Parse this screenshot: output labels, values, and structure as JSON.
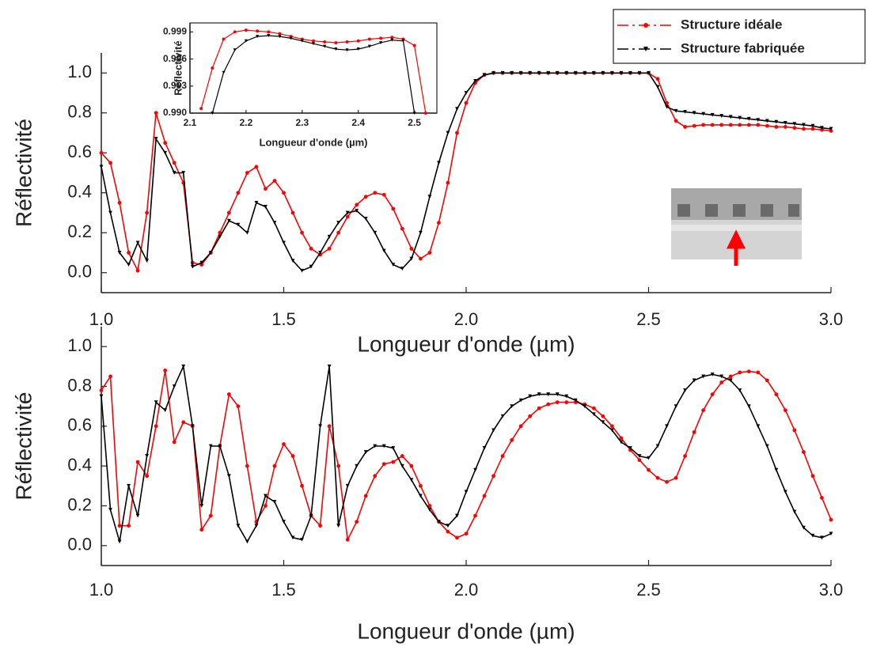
{
  "chart_data": [
    {
      "type": "line",
      "x": [
        1,
        1.025,
        1.05,
        1.075,
        1.1,
        1.125,
        1.15,
        1.175,
        1.2,
        1.225,
        1.25,
        1.275,
        1.3,
        1.325,
        1.35,
        1.375,
        1.4,
        1.425,
        1.45,
        1.475,
        1.5,
        1.525,
        1.55,
        1.575,
        1.6,
        1.625,
        1.65,
        1.675,
        1.7,
        1.725,
        1.75,
        1.775,
        1.8,
        1.825,
        1.85,
        1.875,
        1.9,
        1.925,
        1.95,
        1.975,
        2,
        2.025,
        2.05,
        2.075,
        2.1,
        2.125,
        2.15,
        2.175,
        2.2,
        2.225,
        2.25,
        2.275,
        2.3,
        2.325,
        2.35,
        2.375,
        2.4,
        2.425,
        2.45,
        2.475,
        2.5,
        2.525,
        2.55,
        2.575,
        2.6,
        2.625,
        2.65,
        2.675,
        2.7,
        2.725,
        2.75,
        2.775,
        2.8,
        2.825,
        2.85,
        2.875,
        2.9,
        2.925,
        2.95,
        2.975,
        3
      ],
      "series": [
        {
          "name": "Structure idéale",
          "color": "#ff0000",
          "marker": "circle",
          "values": [
            0.6,
            0.55,
            0.35,
            0.1,
            0.01,
            0.3,
            0.8,
            0.65,
            0.55,
            0.45,
            0.05,
            0.04,
            0.1,
            0.2,
            0.3,
            0.4,
            0.5,
            0.53,
            0.42,
            0.46,
            0.4,
            0.3,
            0.2,
            0.12,
            0.09,
            0.12,
            0.2,
            0.28,
            0.34,
            0.38,
            0.4,
            0.39,
            0.32,
            0.22,
            0.12,
            0.07,
            0.1,
            0.25,
            0.45,
            0.7,
            0.85,
            0.95,
            0.99,
            1,
            1,
            1,
            1,
            1,
            1,
            1,
            1,
            1,
            1,
            1,
            1,
            1,
            1,
            1,
            1,
            1,
            1,
            0.97,
            0.85,
            0.76,
            0.73,
            0.735,
            0.74,
            0.74,
            0.74,
            0.74,
            0.74,
            0.74,
            0.74,
            0.735,
            0.73,
            0.73,
            0.725,
            0.72,
            0.72,
            0.715,
            0.71
          ]
        },
        {
          "name": "Structure fabriquée",
          "color": "#000000",
          "marker": "triangle",
          "values": [
            0.53,
            0.3,
            0.1,
            0.04,
            0.15,
            0.06,
            0.67,
            0.6,
            0.5,
            0.5,
            0.03,
            0.05,
            0.1,
            0.18,
            0.26,
            0.24,
            0.2,
            0.35,
            0.33,
            0.25,
            0.15,
            0.06,
            0.01,
            0.03,
            0.1,
            0.18,
            0.25,
            0.3,
            0.31,
            0.27,
            0.2,
            0.11,
            0.04,
            0.02,
            0.07,
            0.2,
            0.38,
            0.55,
            0.7,
            0.82,
            0.9,
            0.96,
            0.99,
            1,
            1,
            1,
            1,
            1,
            1,
            1,
            1,
            1,
            1,
            1,
            1,
            1,
            1,
            1,
            1,
            1,
            1,
            0.93,
            0.83,
            0.81,
            0.805,
            0.8,
            0.795,
            0.79,
            0.785,
            0.78,
            0.775,
            0.77,
            0.765,
            0.76,
            0.755,
            0.75,
            0.745,
            0.74,
            0.735,
            0.725,
            0.72
          ]
        }
      ],
      "xlabel": "Longueur d'onde (µm)",
      "ylabel": "Réflectivité",
      "xlim": [
        1,
        3
      ],
      "ylim": [
        -0.1,
        1.1
      ],
      "xticks": [
        {
          "value": 1,
          "label": "1.0"
        },
        1.5,
        {
          "value": 2,
          "label": "2.0"
        },
        2.5,
        {
          "value": 3,
          "label": "3.0"
        }
      ],
      "yticks": [
        {
          "value": 0,
          "label": "0.0"
        },
        0.2,
        0.4,
        0.6,
        0.8,
        {
          "value": 1,
          "label": "1.0"
        }
      ],
      "legend": "upper right"
    },
    {
      "type": "line",
      "x": [
        1,
        1.025,
        1.05,
        1.075,
        1.1,
        1.125,
        1.15,
        1.175,
        1.2,
        1.225,
        1.25,
        1.275,
        1.3,
        1.325,
        1.35,
        1.375,
        1.4,
        1.425,
        1.45,
        1.475,
        1.5,
        1.525,
        1.55,
        1.575,
        1.6,
        1.625,
        1.65,
        1.675,
        1.7,
        1.725,
        1.75,
        1.775,
        1.8,
        1.825,
        1.85,
        1.875,
        1.9,
        1.925,
        1.95,
        1.975,
        2,
        2.025,
        2.05,
        2.075,
        2.1,
        2.125,
        2.15,
        2.175,
        2.2,
        2.225,
        2.25,
        2.275,
        2.3,
        2.325,
        2.35,
        2.375,
        2.4,
        2.425,
        2.45,
        2.475,
        2.5,
        2.525,
        2.55,
        2.575,
        2.6,
        2.625,
        2.65,
        2.675,
        2.7,
        2.725,
        2.75,
        2.775,
        2.8,
        2.825,
        2.85,
        2.875,
        2.9,
        2.925,
        2.95,
        2.975,
        3
      ],
      "series": [
        {
          "color": "#ff0000",
          "marker": "circle",
          "values": [
            0.78,
            0.85,
            0.1,
            0.1,
            0.42,
            0.35,
            0.6,
            0.88,
            0.52,
            0.62,
            0.6,
            0.08,
            0.15,
            0.5,
            0.76,
            0.7,
            0.4,
            0.12,
            0.2,
            0.4,
            0.51,
            0.45,
            0.3,
            0.15,
            0.1,
            0.6,
            0.4,
            0.03,
            0.12,
            0.25,
            0.35,
            0.41,
            0.42,
            0.45,
            0.4,
            0.3,
            0.2,
            0.12,
            0.07,
            0.04,
            0.06,
            0.15,
            0.25,
            0.35,
            0.45,
            0.53,
            0.6,
            0.65,
            0.69,
            0.71,
            0.72,
            0.72,
            0.72,
            0.71,
            0.69,
            0.65,
            0.6,
            0.54,
            0.48,
            0.43,
            0.38,
            0.34,
            0.32,
            0.34,
            0.45,
            0.57,
            0.68,
            0.76,
            0.82,
            0.85,
            0.87,
            0.875,
            0.87,
            0.83,
            0.76,
            0.68,
            0.58,
            0.47,
            0.35,
            0.24,
            0.13
          ]
        },
        {
          "color": "#000000",
          "marker": "triangle",
          "values": [
            0.75,
            0.18,
            0.02,
            0.3,
            0.15,
            0.45,
            0.72,
            0.68,
            0.8,
            0.9,
            0.6,
            0.2,
            0.5,
            0.5,
            0.35,
            0.1,
            0.02,
            0.1,
            0.25,
            0.22,
            0.12,
            0.04,
            0.03,
            0.15,
            0.6,
            0.9,
            0.1,
            0.3,
            0.4,
            0.47,
            0.5,
            0.5,
            0.49,
            0.4,
            0.33,
            0.25,
            0.18,
            0.12,
            0.1,
            0.15,
            0.27,
            0.38,
            0.49,
            0.58,
            0.65,
            0.7,
            0.73,
            0.75,
            0.76,
            0.76,
            0.76,
            0.75,
            0.73,
            0.7,
            0.66,
            0.62,
            0.58,
            0.52,
            0.49,
            0.45,
            0.44,
            0.5,
            0.6,
            0.7,
            0.78,
            0.83,
            0.85,
            0.86,
            0.85,
            0.83,
            0.78,
            0.7,
            0.6,
            0.5,
            0.38,
            0.27,
            0.17,
            0.09,
            0.05,
            0.04,
            0.06
          ]
        }
      ],
      "xlabel": "Longueur d'onde (µm)",
      "ylabel": "Réflectivité",
      "xlim": [
        1,
        3
      ],
      "ylim": [
        -0.1,
        1.1
      ],
      "xticks": [
        {
          "value": 1,
          "label": "1.0"
        },
        1.5,
        {
          "value": 2,
          "label": "2.0"
        },
        2.5,
        {
          "value": 3,
          "label": "3.0"
        }
      ],
      "yticks": [
        {
          "value": 0,
          "label": "0.0"
        },
        0.2,
        0.4,
        0.6,
        0.8,
        {
          "value": 1,
          "label": "1.0"
        }
      ]
    },
    {
      "type": "line",
      "series": [
        {
          "color": "#ff0000",
          "marker": "circle",
          "x": [
            2.12,
            2.14,
            2.16,
            2.18,
            2.2,
            2.22,
            2.24,
            2.26,
            2.28,
            2.3,
            2.32,
            2.34,
            2.36,
            2.38,
            2.4,
            2.42,
            2.44,
            2.46,
            2.48,
            2.5,
            2.52
          ],
          "values": [
            0.9905,
            0.995,
            0.9982,
            0.999,
            0.9992,
            0.9991,
            0.999,
            0.9988,
            0.9985,
            0.9982,
            0.998,
            0.9979,
            0.9978,
            0.9979,
            0.998,
            0.9982,
            0.9983,
            0.9984,
            0.9982,
            0.9975,
            0.99
          ]
        },
        {
          "color": "#000000",
          "marker": "triangle",
          "x": [
            2.14,
            2.16,
            2.18,
            2.2,
            2.22,
            2.24,
            2.26,
            2.28,
            2.3,
            2.32,
            2.34,
            2.36,
            2.38,
            2.4,
            2.42,
            2.44,
            2.46,
            2.48,
            2.5
          ],
          "values": [
            0.99,
            0.9945,
            0.997,
            0.998,
            0.9985,
            0.9986,
            0.9985,
            0.9983,
            0.998,
            0.9977,
            0.9974,
            0.9971,
            0.997,
            0.9971,
            0.9974,
            0.9978,
            0.9981,
            0.998,
            0.99
          ]
        }
      ],
      "xlabel": "Longueur d'onde (µm)",
      "ylabel": "Réflectivité",
      "xlim": [
        2.1,
        2.54
      ],
      "ylim": [
        0.99,
        1
      ],
      "xticks": [
        2.1,
        2.2,
        2.3,
        2.4,
        2.5
      ],
      "yticks": [
        {
          "value": 0.99,
          "label": "0.990"
        },
        {
          "value": 0.993,
          "label": "0.993"
        },
        {
          "value": 0.996,
          "label": "0.996"
        },
        {
          "value": 0.999,
          "label": "0.999"
        }
      ]
    }
  ]
}
